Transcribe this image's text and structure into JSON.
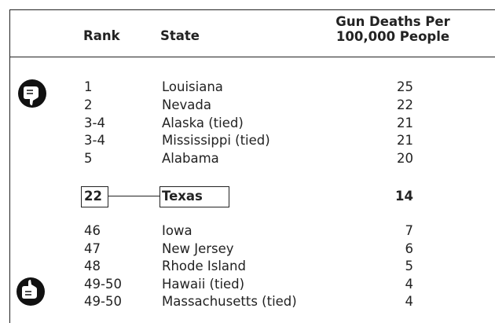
{
  "header": {
    "rank": "Rank",
    "state": "State",
    "deaths": [
      "Gun Deaths Per",
      "100,000 People"
    ]
  },
  "top": [
    {
      "rank": "1",
      "state": "Louisiana",
      "deaths": 25
    },
    {
      "rank": "2",
      "state": "Nevada",
      "deaths": 22
    },
    {
      "rank": "3-4",
      "state": "Alaska (tied)",
      "deaths": 21
    },
    {
      "rank": "3-4",
      "state": "Mississippi (tied)",
      "deaths": 21
    },
    {
      "rank": "5",
      "state": "Alabama",
      "deaths": 20
    }
  ],
  "highlight": {
    "rank": "22",
    "state": "Texas",
    "deaths": 14
  },
  "bottom": [
    {
      "rank": "46",
      "state": "Iowa",
      "deaths": 7
    },
    {
      "rank": "47",
      "state": "New Jersey",
      "deaths": 6
    },
    {
      "rank": "48",
      "state": "Rhode Island",
      "deaths": 5
    },
    {
      "rank": "49-50",
      "state": "Hawaii (tied)",
      "deaths": 4
    },
    {
      "rank": "49-50",
      "state": "Massachusetts (tied)",
      "deaths": 4
    }
  ]
}
